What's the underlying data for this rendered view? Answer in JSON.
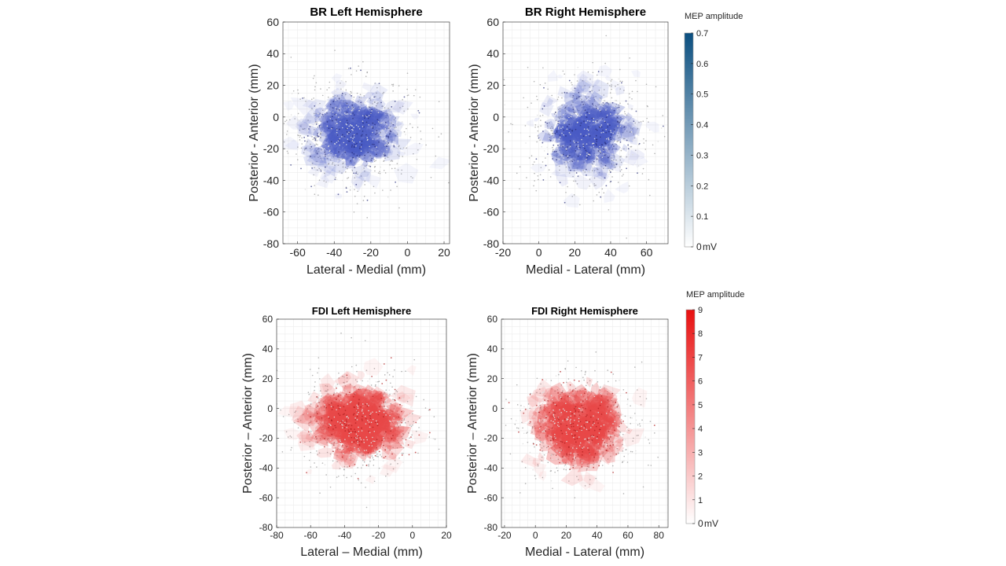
{
  "figure": {
    "colorbars": [
      {
        "id": "br",
        "title": "MEP amplitude",
        "unit": "mV",
        "range": [
          0,
          0.7
        ],
        "ticks": [
          "0",
          "0.1",
          "0.2",
          "0.3",
          "0.4",
          "0.5",
          "0.6",
          "0.7"
        ],
        "color_low": "#ffffff",
        "color_high": "#0b4f80"
      },
      {
        "id": "fdi",
        "title": "MEP amplitude",
        "unit": "mV",
        "range": [
          0,
          9
        ],
        "ticks": [
          "0",
          "1",
          "2",
          "3",
          "4",
          "5",
          "6",
          "7",
          "8",
          "9"
        ],
        "color_low": "#ffffff",
        "color_high": "#e81010"
      }
    ]
  },
  "chart_data": [
    {
      "type": "scatter",
      "title": "BR Left Hemisphere",
      "xlabel": "Lateral - Medial (mm)",
      "ylabel": "Posterior - Anterior (mm)",
      "xlim": [
        -68,
        23
      ],
      "ylim": [
        -80,
        60
      ],
      "xticks": [
        -60,
        -40,
        -20,
        0,
        20
      ],
      "yticks": [
        -80,
        -60,
        -40,
        -20,
        0,
        20,
        40,
        60
      ],
      "grid": true,
      "colorbar": "br",
      "fill_color": "#4a5bc4",
      "cloud": {
        "center": [
          -30,
          -10
        ],
        "spread": [
          14,
          14
        ]
      },
      "points_color": "#a0a0a0"
    },
    {
      "type": "scatter",
      "title": "BR Right Hemisphere",
      "xlabel": "Medial - Lateral (mm)",
      "ylabel": "Posterior - Anterior (mm)",
      "xlim": [
        -20,
        72
      ],
      "ylim": [
        -80,
        60
      ],
      "xticks": [
        -20,
        0,
        20,
        40,
        60
      ],
      "yticks": [
        -80,
        -60,
        -40,
        -20,
        0,
        20,
        40,
        60
      ],
      "grid": true,
      "colorbar": "br",
      "fill_color": "#4a5bc4",
      "cloud": {
        "center": [
          27,
          -10
        ],
        "spread": [
          14,
          15
        ]
      },
      "points_color": "#a0a0a0"
    },
    {
      "type": "scatter",
      "title": "FDI Left Hemisphere",
      "xlabel": "Lateral – Medial (mm)",
      "ylabel": "Posterior – Anterior (mm)",
      "xlim": [
        -80,
        20
      ],
      "ylim": [
        -80,
        60
      ],
      "xticks": [
        -80,
        -60,
        -40,
        -20,
        0,
        20
      ],
      "yticks": [
        -80,
        -60,
        -40,
        -20,
        0,
        20,
        40,
        60
      ],
      "grid": true,
      "colorbar": "fdi",
      "fill_color": "#e84848",
      "cloud": {
        "center": [
          -32,
          -10
        ],
        "spread": [
          15,
          14
        ]
      },
      "points_color": "#a0a0a0"
    },
    {
      "type": "scatter",
      "title": "FDI Right Hemisphere",
      "xlabel": "Medial - Lateral (mm)",
      "ylabel": "Posterior – Anterior (mm)",
      "xlim": [
        -22,
        86
      ],
      "ylim": [
        -80,
        60
      ],
      "xticks": [
        -20,
        0,
        20,
        40,
        60,
        80
      ],
      "yticks": [
        -80,
        -60,
        -40,
        -20,
        0,
        20,
        40,
        60
      ],
      "grid": true,
      "colorbar": "fdi",
      "fill_color": "#e84848",
      "cloud": {
        "center": [
          28,
          -12
        ],
        "spread": [
          16,
          15
        ]
      },
      "points_color": "#a0a0a0"
    }
  ]
}
